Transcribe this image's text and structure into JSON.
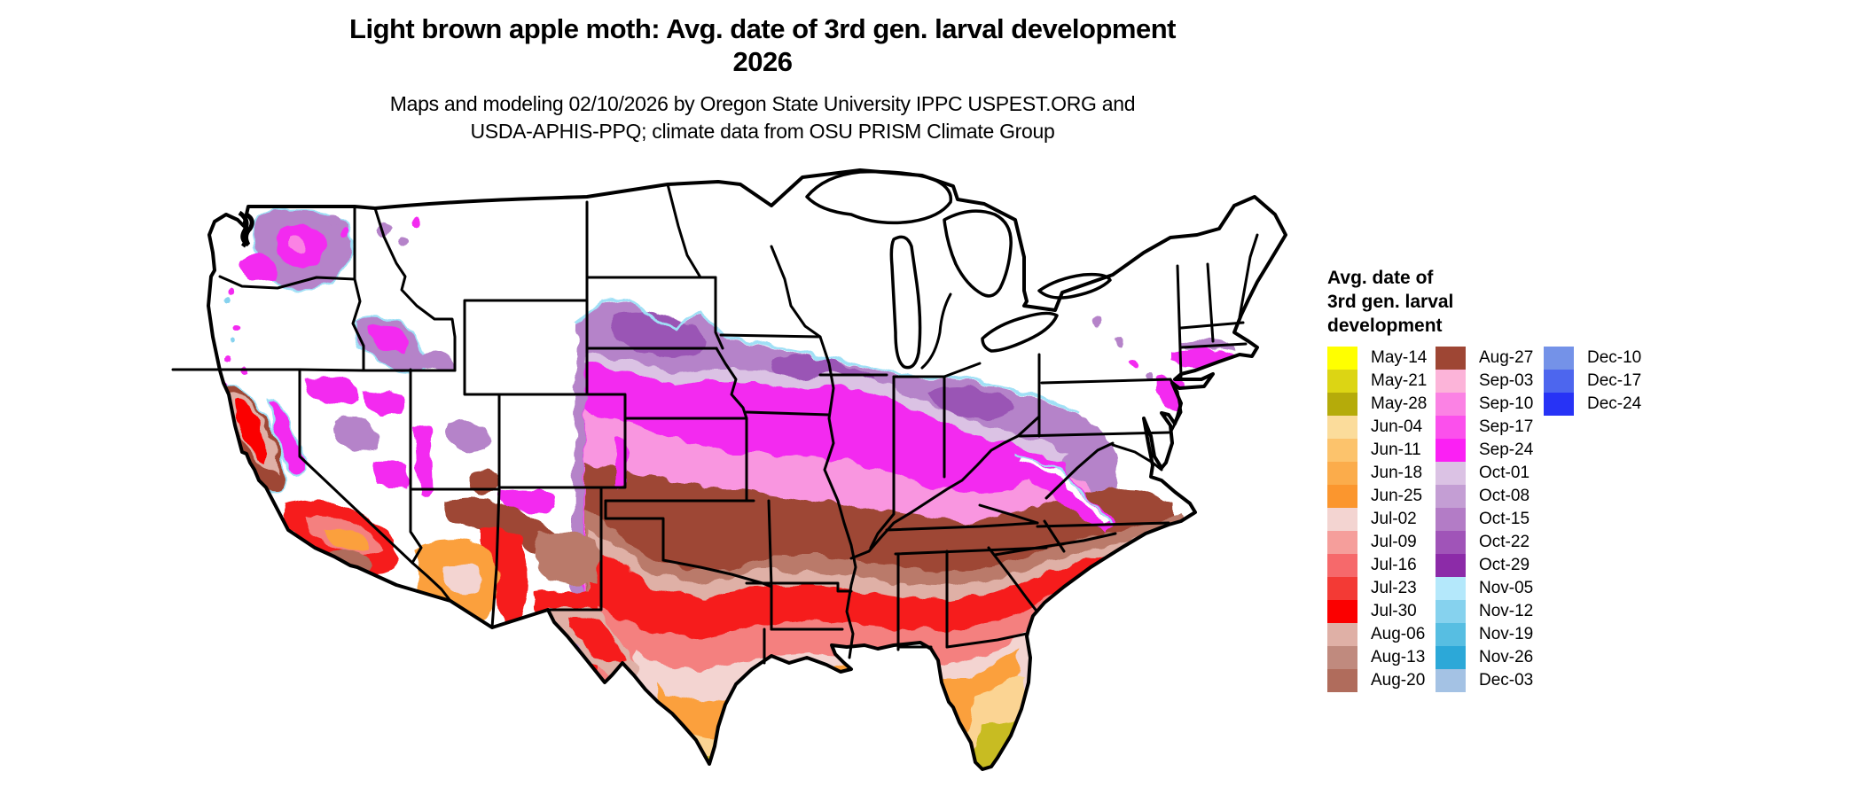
{
  "header": {
    "title_line1": "Light brown apple moth: Avg. date of 3rd gen. larval development",
    "title_line2": "2026",
    "subtitle_line1": "Maps and modeling 02/10/2026 by Oregon State University IPPC USPEST.ORG and",
    "subtitle_line2": "USDA-APHIS-PPQ; climate data from OSU PRISM Climate Group"
  },
  "map": {
    "region": "Continental United States",
    "no_data_color": "#ffffff",
    "border_color": "#000000"
  },
  "legend": {
    "title_lines": [
      "Avg. date of",
      "3rd gen. larval",
      "development"
    ],
    "columns": [
      [
        {
          "label": "May-14",
          "color": "#FFFF00"
        },
        {
          "label": "May-21",
          "color": "#DCD514"
        },
        {
          "label": "May-28",
          "color": "#B5AB0A"
        },
        {
          "label": "Jun-04",
          "color": "#FBDC9B"
        },
        {
          "label": "Jun-11",
          "color": "#FCC36C"
        },
        {
          "label": "Jun-18",
          "color": "#FBAC4B"
        },
        {
          "label": "Jun-25",
          "color": "#FB962E"
        },
        {
          "label": "Jul-02",
          "color": "#F3D4D1"
        },
        {
          "label": "Jul-09",
          "color": "#F59E9B"
        },
        {
          "label": "Jul-16",
          "color": "#F6696B"
        },
        {
          "label": "Jul-23",
          "color": "#F33A35"
        },
        {
          "label": "Jul-30",
          "color": "#FB0000"
        },
        {
          "label": "Aug-06",
          "color": "#DFB0A6"
        },
        {
          "label": "Aug-13",
          "color": "#C08A7E"
        },
        {
          "label": "Aug-20",
          "color": "#B06C5C"
        }
      ],
      [
        {
          "label": "Aug-27",
          "color": "#9E4634"
        },
        {
          "label": "Sep-03",
          "color": "#FCB4D9"
        },
        {
          "label": "Sep-10",
          "color": "#FB82E4"
        },
        {
          "label": "Sep-17",
          "color": "#FB50EC"
        },
        {
          "label": "Sep-24",
          "color": "#FB20F4"
        },
        {
          "label": "Oct-01",
          "color": "#DBC2E4"
        },
        {
          "label": "Oct-08",
          "color": "#C49ED4"
        },
        {
          "label": "Oct-15",
          "color": "#B37CC6"
        },
        {
          "label": "Oct-22",
          "color": "#A054B8"
        },
        {
          "label": "Oct-29",
          "color": "#8C2BA8"
        },
        {
          "label": "Nov-05",
          "color": "#B4E8FB"
        },
        {
          "label": "Nov-12",
          "color": "#86D2EE"
        },
        {
          "label": "Nov-19",
          "color": "#57BEE2"
        },
        {
          "label": "Nov-26",
          "color": "#2CA8D8"
        },
        {
          "label": "Dec-03",
          "color": "#A4C2E4"
        }
      ],
      [
        {
          "label": "Dec-10",
          "color": "#7492E8"
        },
        {
          "label": "Dec-17",
          "color": "#4D66EE"
        },
        {
          "label": "Dec-24",
          "color": "#2733F6"
        }
      ]
    ]
  }
}
